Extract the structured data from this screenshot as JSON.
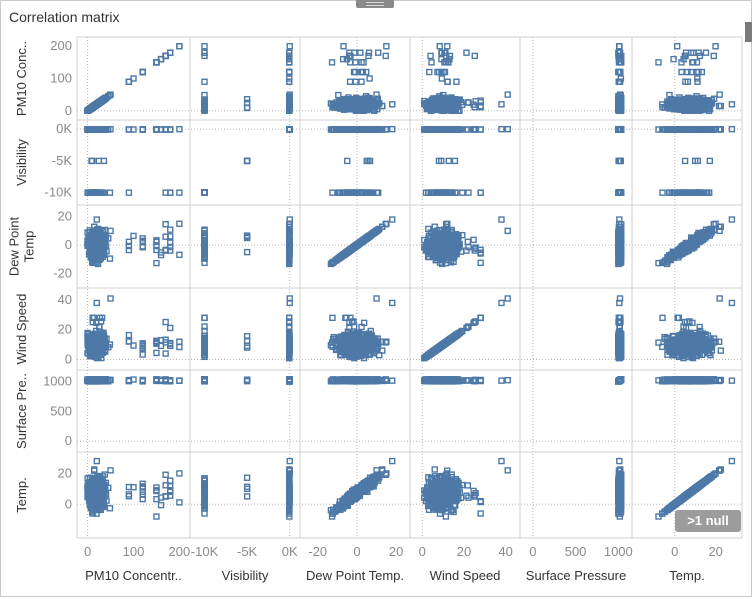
{
  "title": "Correlation matrix",
  "null_indicator": ">1 null",
  "colors": {
    "mark": "#4e79a7",
    "grid": "#e6e6e6",
    "axis": "#8a8a8a"
  },
  "chart_data": {
    "type": "scatter",
    "variables": [
      "PM10 Concentration",
      "Visibility",
      "Dew Point Temp.",
      "Wind Speed",
      "Surface Pressure",
      "Temp."
    ],
    "row_labels": [
      "PM10 Conc..",
      "Visibility",
      "Dew Point Temp",
      "Wind Speed",
      "Surface Pre..",
      "Temp."
    ],
    "column_labels": [
      "PM10 Concentr..",
      "Visibility",
      "Dew Point Temp.",
      "Wind Speed",
      "Surface Pressure",
      "Temp."
    ],
    "axes": [
      {
        "name": "PM10 Concentration",
        "range": [
          -10,
          210
        ],
        "ticks": [
          0,
          100,
          200
        ],
        "tick_labels": [
          "0",
          "100",
          "200"
        ]
      },
      {
        "name": "Visibility",
        "range": [
          -11000,
          500
        ],
        "ticks": [
          -10000,
          -5000,
          0
        ],
        "tick_labels": [
          "-10K",
          "-5K",
          "0K"
        ]
      },
      {
        "name": "Dew Point Temp.",
        "range": [
          -26,
          24
        ],
        "ticks": [
          -20,
          0,
          20
        ],
        "tick_labels": [
          "-20",
          "0",
          "20"
        ]
      },
      {
        "name": "Wind Speed",
        "range": [
          -3,
          44
        ],
        "ticks": [
          0,
          20,
          40
        ],
        "tick_labels": [
          "0",
          "20",
          "40"
        ]
      },
      {
        "name": "Surface Pressure",
        "range": [
          -80,
          1090
        ],
        "ticks": [
          0,
          500,
          1000
        ],
        "tick_labels": [
          "0",
          "500",
          "1000"
        ]
      },
      {
        "name": "Temp.",
        "range": [
          -18,
          30
        ],
        "ticks": [
          0,
          20
        ],
        "tick_labels": [
          "0",
          "20"
        ]
      }
    ],
    "summary": {
      "PM10 Concentration": {
        "typical_range": [
          0,
          80
        ],
        "outliers": [
          90,
          100,
          120,
          140,
          150,
          160,
          170,
          180,
          200
        ]
      },
      "Visibility": {
        "typical_values": [
          0,
          -10000
        ],
        "rare_values": [
          -5000
        ]
      },
      "Dew Point Temp.": {
        "typical_range": [
          -22,
          22
        ]
      },
      "Wind Speed": {
        "typical_range": [
          0,
          28
        ],
        "max": 41
      },
      "Surface Pressure": {
        "typical_range": [
          1000,
          1040
        ]
      },
      "Temp.": {
        "typical_range": [
          -15,
          29
        ]
      },
      "relationships": [
        {
          "x": "Temp.",
          "y": "Dew Point Temp.",
          "pattern": "strong positive linear"
        },
        {
          "x": "Temp.",
          "y": "Wind Speed",
          "pattern": "weak, dense cloud"
        },
        {
          "x": "PM10 Concentration",
          "y": "Temp.",
          "pattern": "no clear trend"
        }
      ]
    },
    "grid": true,
    "legend": "none"
  }
}
